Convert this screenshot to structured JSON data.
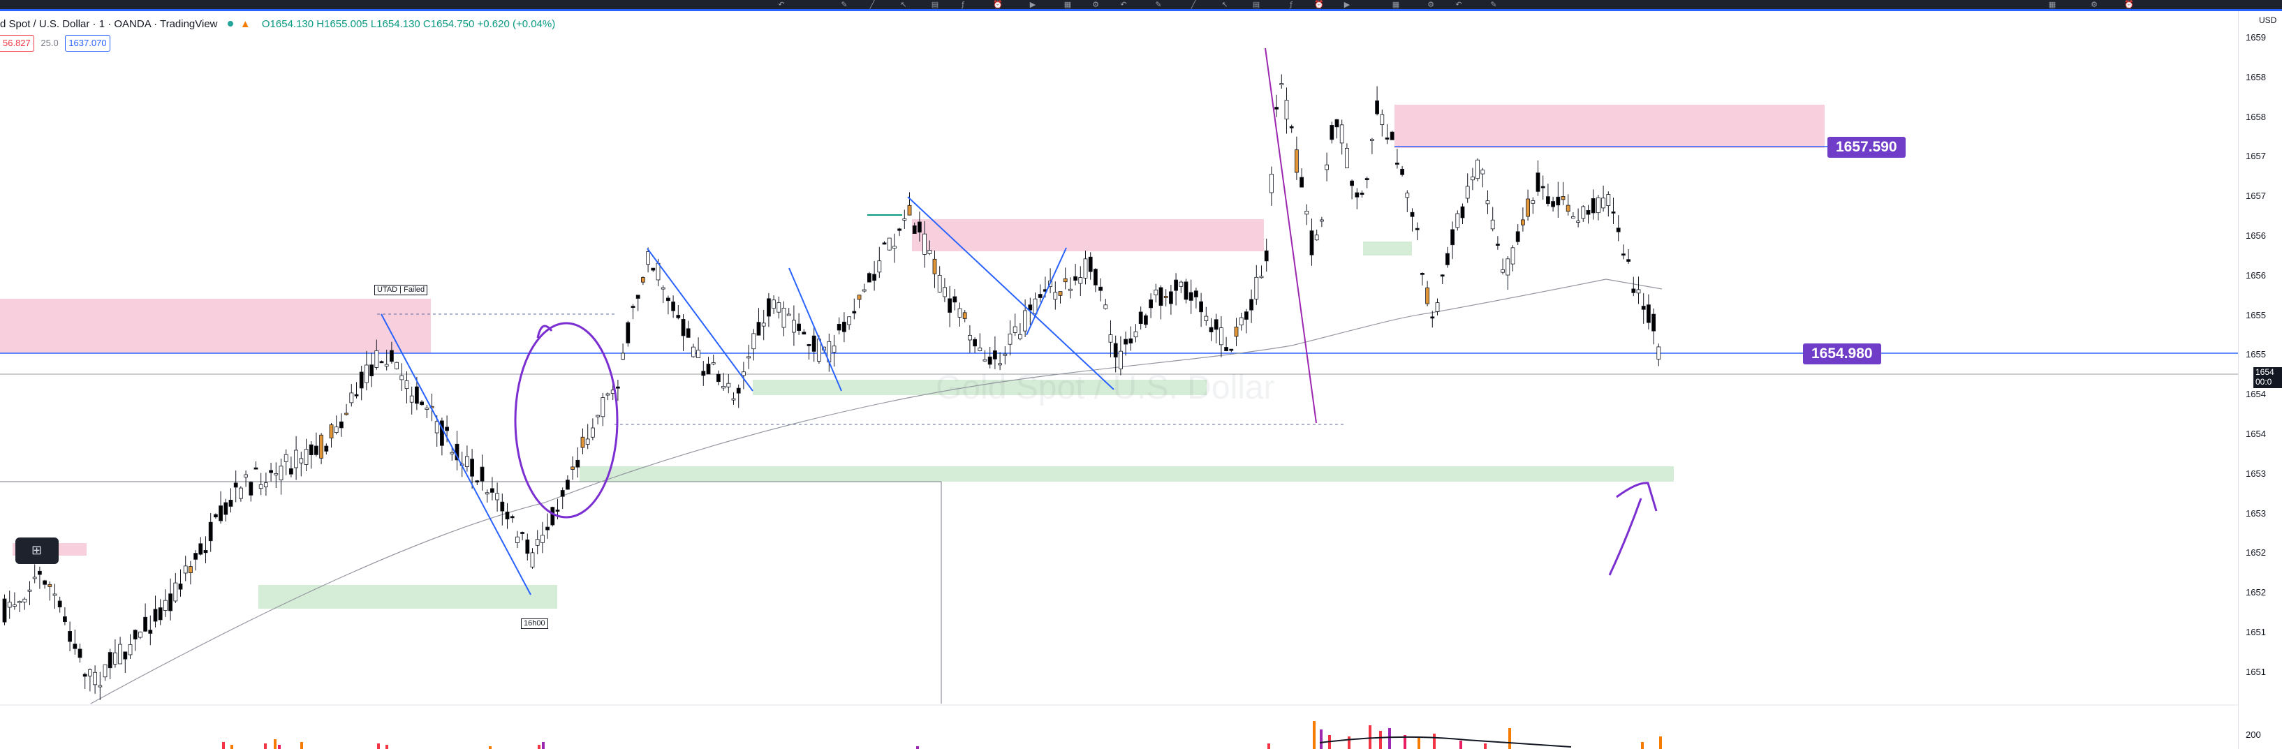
{
  "legend": {
    "symbol": "d Spot / U.S. Dollar · 1 · OANDA · TradingView",
    "ohlc": "O1654.130 H1655.005 L1654.130 C1654.750 +0.620 (+0.04%)"
  },
  "quote": {
    "sell": "56.827",
    "spread": "25.0",
    "buy": "1637.070"
  },
  "watermark": "Gold Spot / U.S. Dollar",
  "labels": {
    "upper_level": "1657.590",
    "lower_level": "1654.980",
    "failed_tag": "UTAD | Failed",
    "time_tag": "16h00"
  },
  "axis": {
    "unit": "USD",
    "current_price": "1654",
    "countdown": "00:0",
    "ticks": [
      "1659",
      "1658",
      "1658",
      "1657",
      "1657",
      "1656",
      "1656",
      "1655",
      "1655",
      "1654",
      "1654",
      "1653",
      "1653",
      "1652",
      "1652",
      "1651",
      "1651"
    ],
    "volume_tick": "200"
  },
  "colors": {
    "accent": "#2962ff",
    "label": "#6f3dc8",
    "supply": "#f8cfdc",
    "demand": "#d5ecd6",
    "up_candle": "#ffffff",
    "down_candle": "#000000",
    "highlight_candle": "#e39635",
    "annotation": "#7b2fd1"
  },
  "icons": [
    "back-icon",
    "pencil-icon",
    "line-icon",
    "cursor-icon",
    "bars-icon",
    "indicator-icon",
    "alert-icon",
    "replay-icon",
    "layout-icon",
    "settings-icon"
  ],
  "widget_icon": "object-tree-icon"
}
